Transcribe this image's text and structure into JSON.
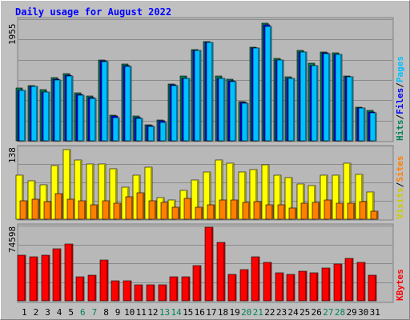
{
  "chart_data": [
    {
      "panel": "hits-files-pages",
      "type": "bar",
      "title": "Daily usage for August 2022",
      "ymax_label": "1955",
      "ylim": [
        0,
        1955
      ],
      "grid": true,
      "legend": [
        {
          "text": "Hits",
          "color": "#00805c"
        },
        {
          "text": "/",
          "color": "#000000"
        },
        {
          "text": "Files",
          "color": "#0000ff"
        },
        {
          "text": "/",
          "color": "#000000"
        },
        {
          "text": "Pages",
          "color": "#00c0ff"
        }
      ],
      "categories": [
        "1",
        "2",
        "3",
        "4",
        "5",
        "6",
        "7",
        "8",
        "9",
        "10",
        "11",
        "12",
        "13",
        "14",
        "15",
        "16",
        "17",
        "18",
        "19",
        "20",
        "21",
        "22",
        "23",
        "24",
        "25",
        "26",
        "27",
        "28",
        "29",
        "30",
        "31"
      ],
      "weekend_days": [
        "6",
        "7",
        "13",
        "14",
        "20",
        "21",
        "27",
        "28"
      ],
      "series": [
        {
          "name": "Hits",
          "color": "#00805c",
          "values": [
            860,
            900,
            840,
            1030,
            1090,
            780,
            730,
            1320,
            420,
            1250,
            400,
            260,
            340,
            930,
            1050,
            1490,
            1620,
            1050,
            1000,
            640,
            1530,
            1910,
            1340,
            1040,
            1470,
            1260,
            1450,
            1430,
            1060,
            550,
            490
          ]
        },
        {
          "name": "Files",
          "color": "#0000ff",
          "values": [
            820,
            880,
            800,
            1000,
            1070,
            760,
            710,
            1300,
            400,
            1230,
            380,
            250,
            320,
            910,
            1020,
            1470,
            1600,
            1020,
            980,
            620,
            1510,
            1890,
            1320,
            1020,
            1450,
            1230,
            1430,
            1410,
            1040,
            530,
            470
          ]
        },
        {
          "name": "Pages",
          "color": "#00c0ff",
          "values": [
            820,
            880,
            790,
            990,
            1060,
            740,
            690,
            1290,
            380,
            1210,
            370,
            240,
            300,
            900,
            1020,
            1470,
            1600,
            1020,
            970,
            610,
            1510,
            1870,
            1310,
            1020,
            1450,
            1220,
            1420,
            1410,
            1040,
            530,
            460
          ]
        }
      ]
    },
    {
      "panel": "sites-visits",
      "type": "bar",
      "ymax_label": "138",
      "ylim": [
        0,
        138
      ],
      "grid": true,
      "legend": [
        {
          "text": "Visits",
          "color": "#cccc00"
        },
        {
          "text": "/",
          "color": "#000000"
        },
        {
          "text": "Sites",
          "color": "#ff8000"
        }
      ],
      "categories": [
        "1",
        "2",
        "3",
        "4",
        "5",
        "6",
        "7",
        "8",
        "9",
        "10",
        "11",
        "12",
        "13",
        "14",
        "15",
        "16",
        "17",
        "18",
        "19",
        "20",
        "21",
        "22",
        "23",
        "24",
        "25",
        "26",
        "27",
        "28",
        "29",
        "30",
        "31"
      ],
      "series": [
        {
          "name": "Visits",
          "color": "#ffff00",
          "values": [
            85,
            73,
            66,
            103,
            134,
            114,
            106,
            106,
            97,
            61,
            85,
            99,
            42,
            37,
            55,
            75,
            91,
            113,
            107,
            90,
            95,
            105,
            84,
            79,
            67,
            64,
            84,
            85,
            107,
            86,
            52
          ]
        },
        {
          "name": "Sites",
          "color": "#ff8000",
          "values": [
            36,
            38,
            33,
            49,
            38,
            36,
            27,
            36,
            30,
            43,
            50,
            36,
            32,
            23,
            40,
            23,
            27,
            37,
            37,
            32,
            33,
            27,
            27,
            22,
            30,
            32,
            37,
            31,
            31,
            33,
            16
          ]
        }
      ]
    },
    {
      "panel": "kbytes",
      "type": "bar",
      "ymax_label": "74598",
      "ylim": [
        0,
        74598
      ],
      "grid": true,
      "legend": [
        {
          "text": "KBytes",
          "color": "#ff0000"
        }
      ],
      "categories": [
        "1",
        "2",
        "3",
        "4",
        "5",
        "6",
        "7",
        "8",
        "9",
        "10",
        "11",
        "12",
        "13",
        "14",
        "15",
        "16",
        "17",
        "18",
        "19",
        "20",
        "21",
        "22",
        "23",
        "24",
        "25",
        "26",
        "27",
        "28",
        "29",
        "30",
        "31"
      ],
      "series": [
        {
          "name": "KBytes",
          "color": "#ff0000",
          "values": [
            46000,
            44500,
            46000,
            52500,
            57200,
            24400,
            25800,
            41700,
            20500,
            20500,
            16300,
            16300,
            16000,
            24400,
            24400,
            36000,
            74598,
            59300,
            27000,
            31300,
            45000,
            38600,
            28000,
            26800,
            30000,
            28000,
            33300,
            37500,
            42800,
            38600,
            25800
          ]
        }
      ]
    }
  ]
}
